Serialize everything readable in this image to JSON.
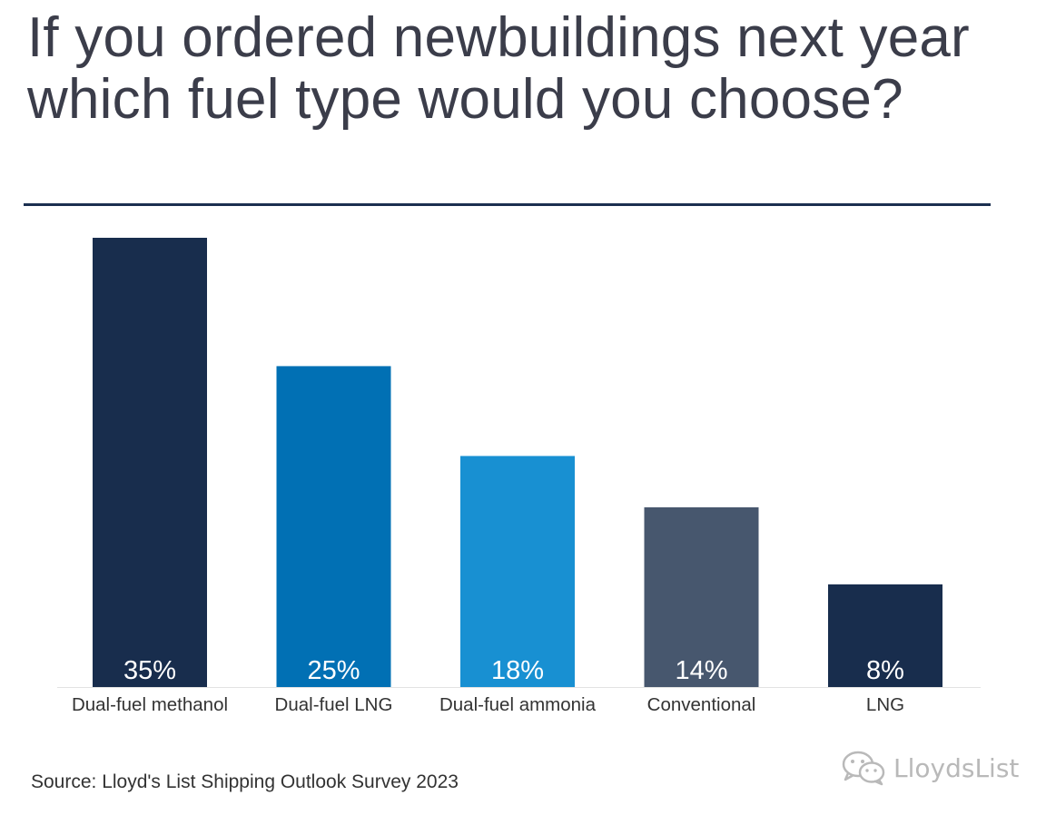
{
  "title": "If you ordered newbuildings next year which fuel type would you choose?",
  "source": "Source: Lloyd's List Shipping Outlook Survey 2023",
  "watermark": {
    "text": "LloydsList",
    "icon": "wechat-icon"
  },
  "colors": {
    "title": "#3b3d4a",
    "rule": "#1b2f50",
    "axis": "#e3e3e3"
  },
  "chart_data": {
    "type": "bar",
    "title": "If you ordered newbuildings next year which fuel type would you choose?",
    "xlabel": "",
    "ylabel": "",
    "ylim": [
      0,
      35
    ],
    "grid": false,
    "legend": "none",
    "categories": [
      "Dual-fuel methanol",
      "Dual-fuel LNG",
      "Dual-fuel ammonia",
      "Conventional",
      "LNG"
    ],
    "values": [
      35,
      25,
      18,
      14,
      8
    ],
    "data_labels": [
      "35%",
      "25%",
      "18%",
      "14%",
      "8%"
    ],
    "bar_colors": [
      "#182d4d",
      "#0170b4",
      "#1890d2",
      "#47576e",
      "#182d4d"
    ]
  }
}
